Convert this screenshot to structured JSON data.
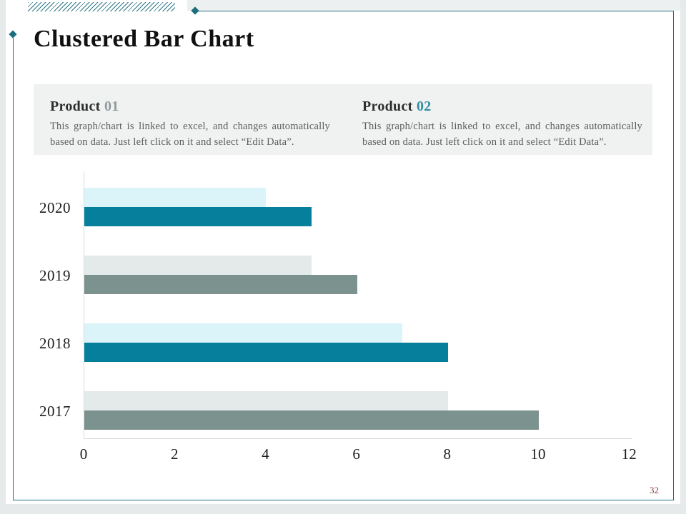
{
  "title": "Clustered Bar Chart",
  "page": {
    "number": "32"
  },
  "products": [
    {
      "heading": "Product",
      "number": "01",
      "number_color": "#8f9b9c",
      "body": "This graph/chart is linked to excel, and changes automatically based on data. Just left click on it and select “Edit Data”."
    },
    {
      "heading": "Product",
      "number": "02",
      "number_color": "#2f8da2",
      "body": "This graph/chart is linked to excel, and changes automatically based on data. Just left click on it and select “Edit Data”."
    }
  ],
  "chart_data": {
    "type": "bar",
    "orientation": "horizontal",
    "title": "",
    "categories": [
      "2020",
      "2019",
      "2018",
      "2017"
    ],
    "series": [
      {
        "name": "light",
        "values": [
          4,
          5,
          7,
          8
        ]
      },
      {
        "name": "dark",
        "values": [
          5,
          6,
          8,
          10
        ]
      }
    ],
    "bar_colors": {
      "light": [
        "#daf4fa",
        "#e4e9e9",
        "#daf4fa",
        "#e4e9e9"
      ],
      "dark": [
        "#067f9d",
        "#7b928e",
        "#067f9d",
        "#7b928e"
      ]
    },
    "x_ticks": [
      0,
      2,
      4,
      6,
      8,
      10,
      12
    ],
    "xlim": [
      0,
      12
    ],
    "grid": false,
    "legend": false
  },
  "colors": {
    "frame": "#1e6f7e",
    "hatch": "#2b7585",
    "band_bg": "#f0f1f1",
    "axis_line": "#d8dbdb",
    "page_number": "#8a3a3a"
  }
}
